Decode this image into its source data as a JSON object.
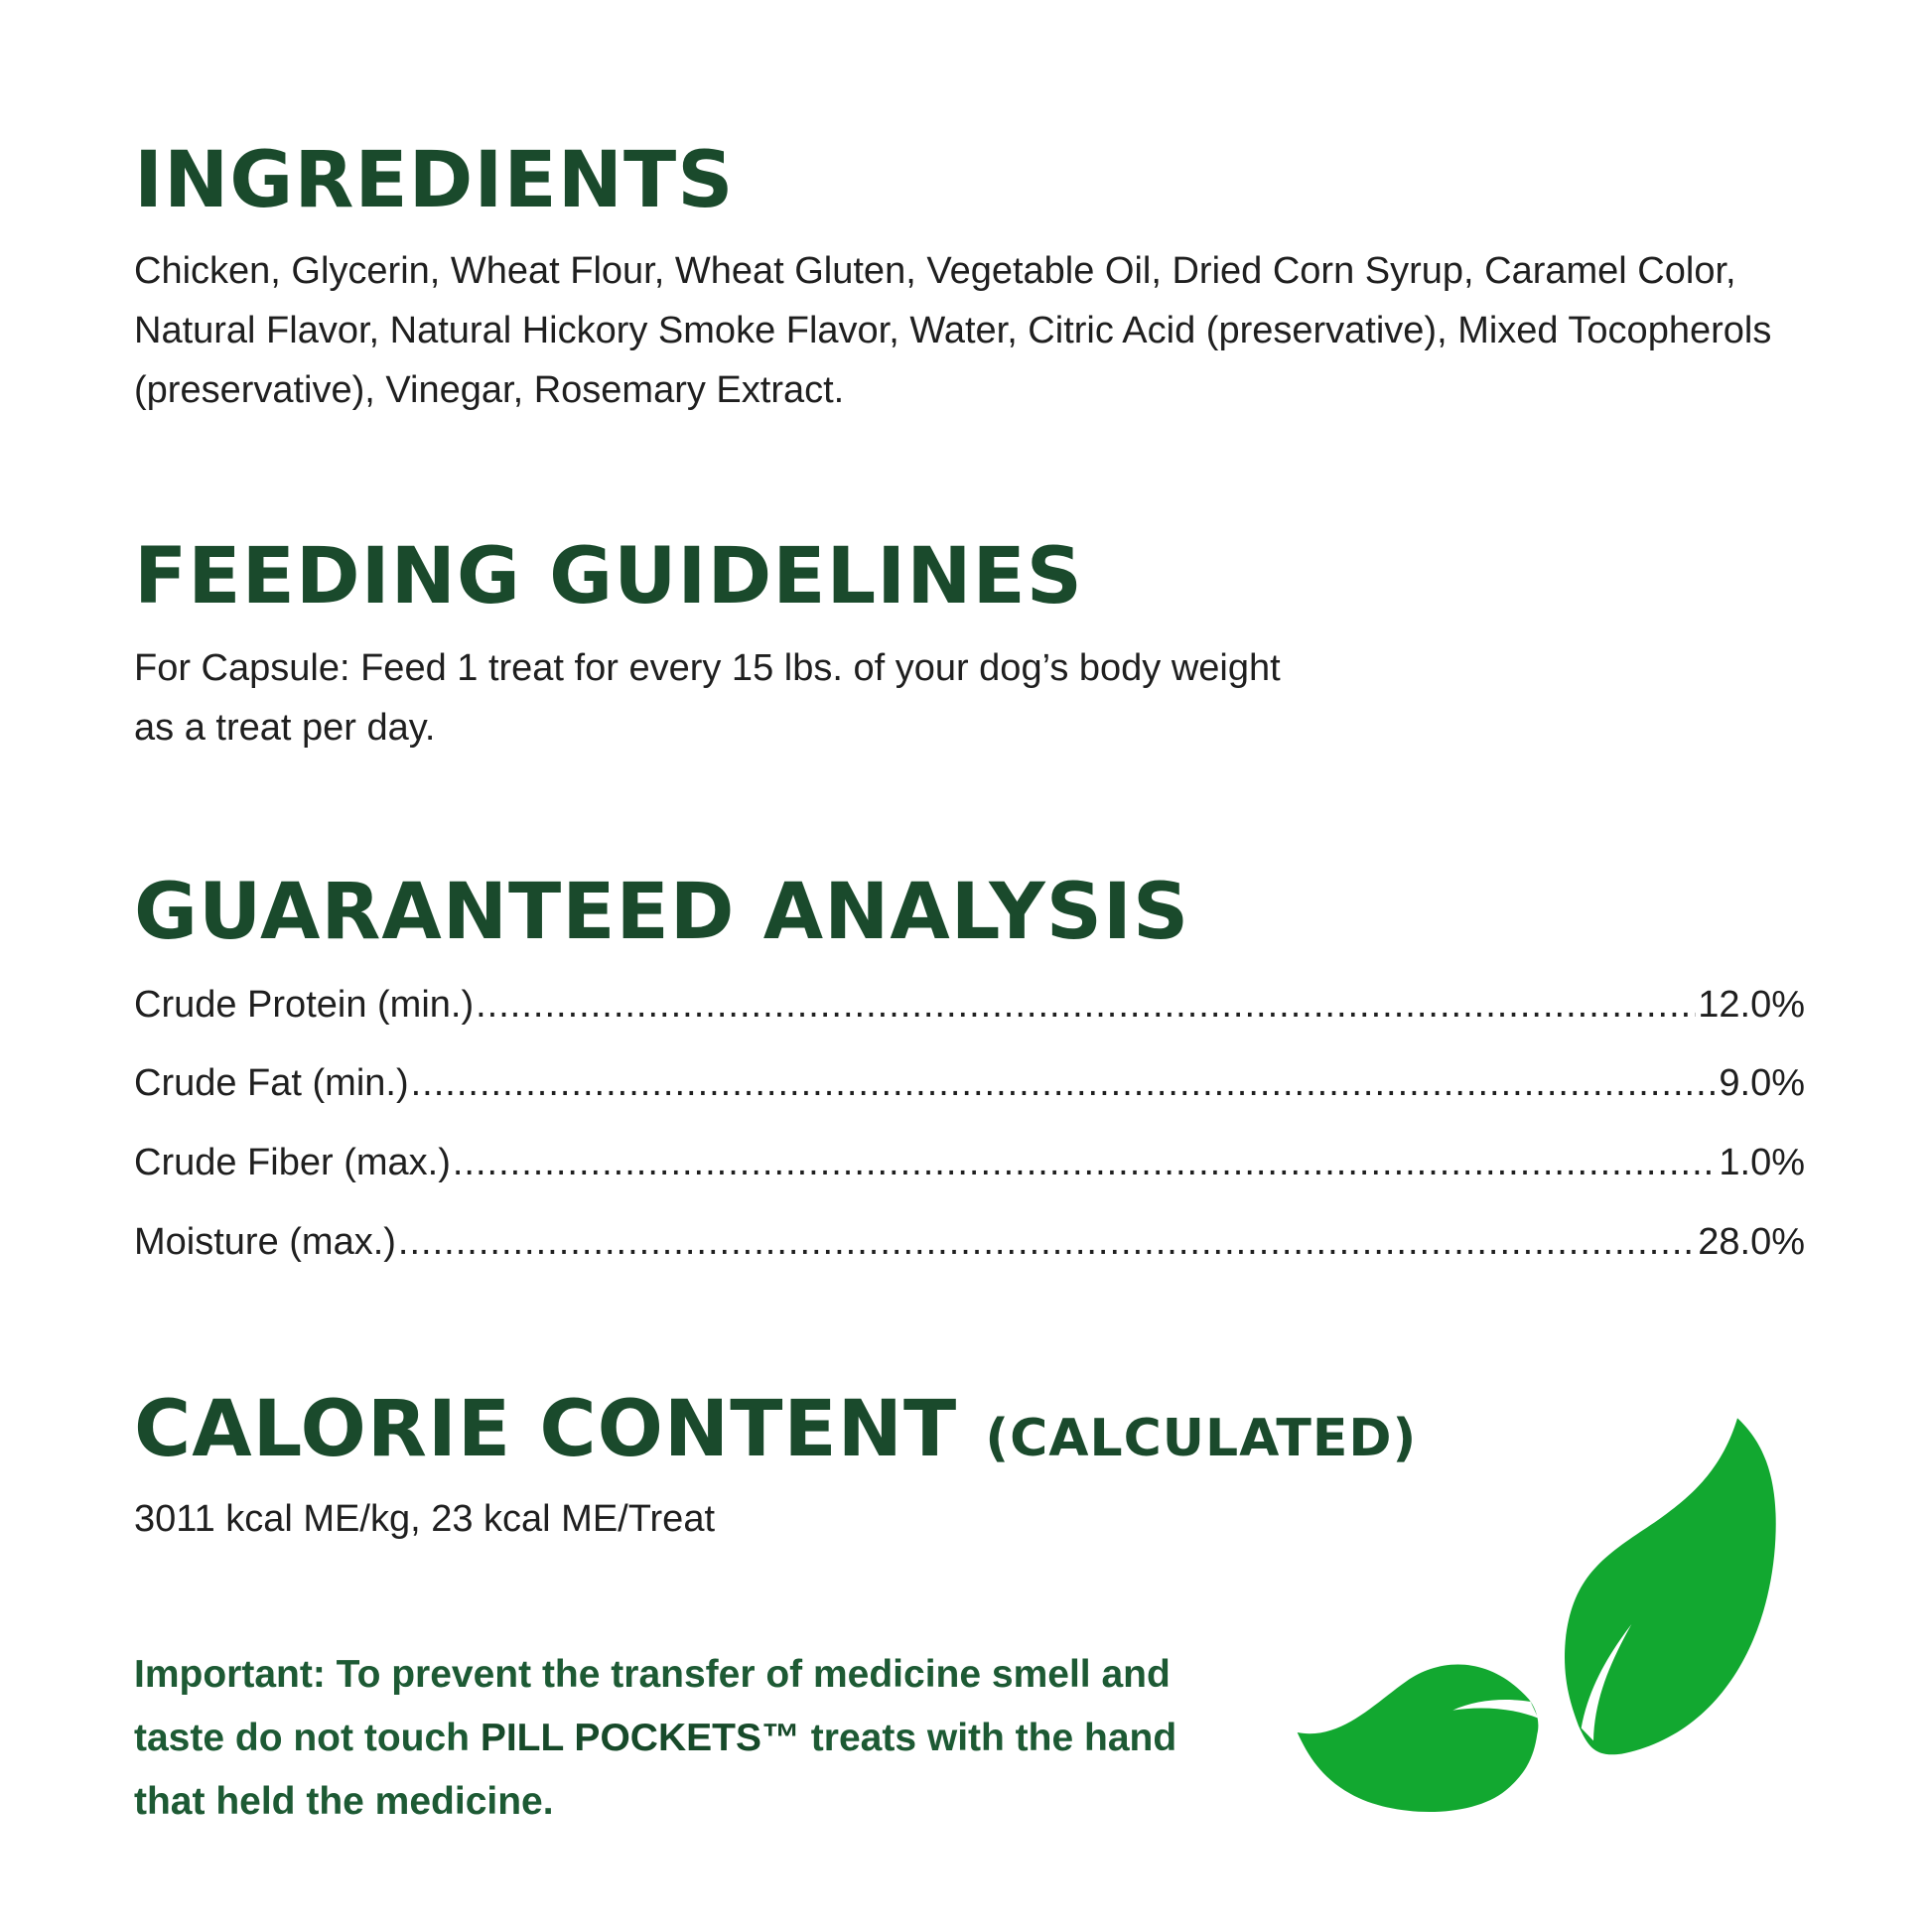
{
  "ingredients": {
    "title": "INGREDIENTS",
    "text": "Chicken, Glycerin, Wheat Flour, Wheat Gluten, Vegetable Oil, Dried Corn Syrup, Caramel Color, Natural Flavor, Natural Hickory Smoke Flavor, Water, Citric Acid (preservative), Mixed Tocopherols (preservative), Vinegar, Rosemary Extract."
  },
  "feeding": {
    "title": "FEEDING GUIDELINES",
    "line1": "For Capsule: Feed 1 treat for every 15 lbs. of your dog’s body weight",
    "line2": "as a treat per day."
  },
  "analysis": {
    "title": "GUARANTEED ANALYSIS",
    "rows": [
      {
        "label": "Crude Protein (min.)",
        "value": "12.0%"
      },
      {
        "label": "Crude Fat (min.)",
        "value": "9.0%"
      },
      {
        "label": "Crude Fiber (max.)",
        "value": "1.0%"
      },
      {
        "label": "Moisture (max.)",
        "value": "28.0%"
      }
    ]
  },
  "calorie": {
    "title": "CALORIE CONTENT",
    "subtitle": "(CALCULATED)",
    "text": "3011 kcal ME/kg, 23 kcal ME/Treat"
  },
  "important": {
    "prefix": "Important: To prevent the transfer of medicine smell and taste do not touch ",
    "brand": "PILL POCKETS™",
    "suffix": " treats with the hand that held the medicine."
  },
  "colors": {
    "heading": "#1a4a2c",
    "leaf": "#12a830",
    "text": "#1f1f1f"
  },
  "decoration": {
    "icon": "leaves-icon"
  }
}
